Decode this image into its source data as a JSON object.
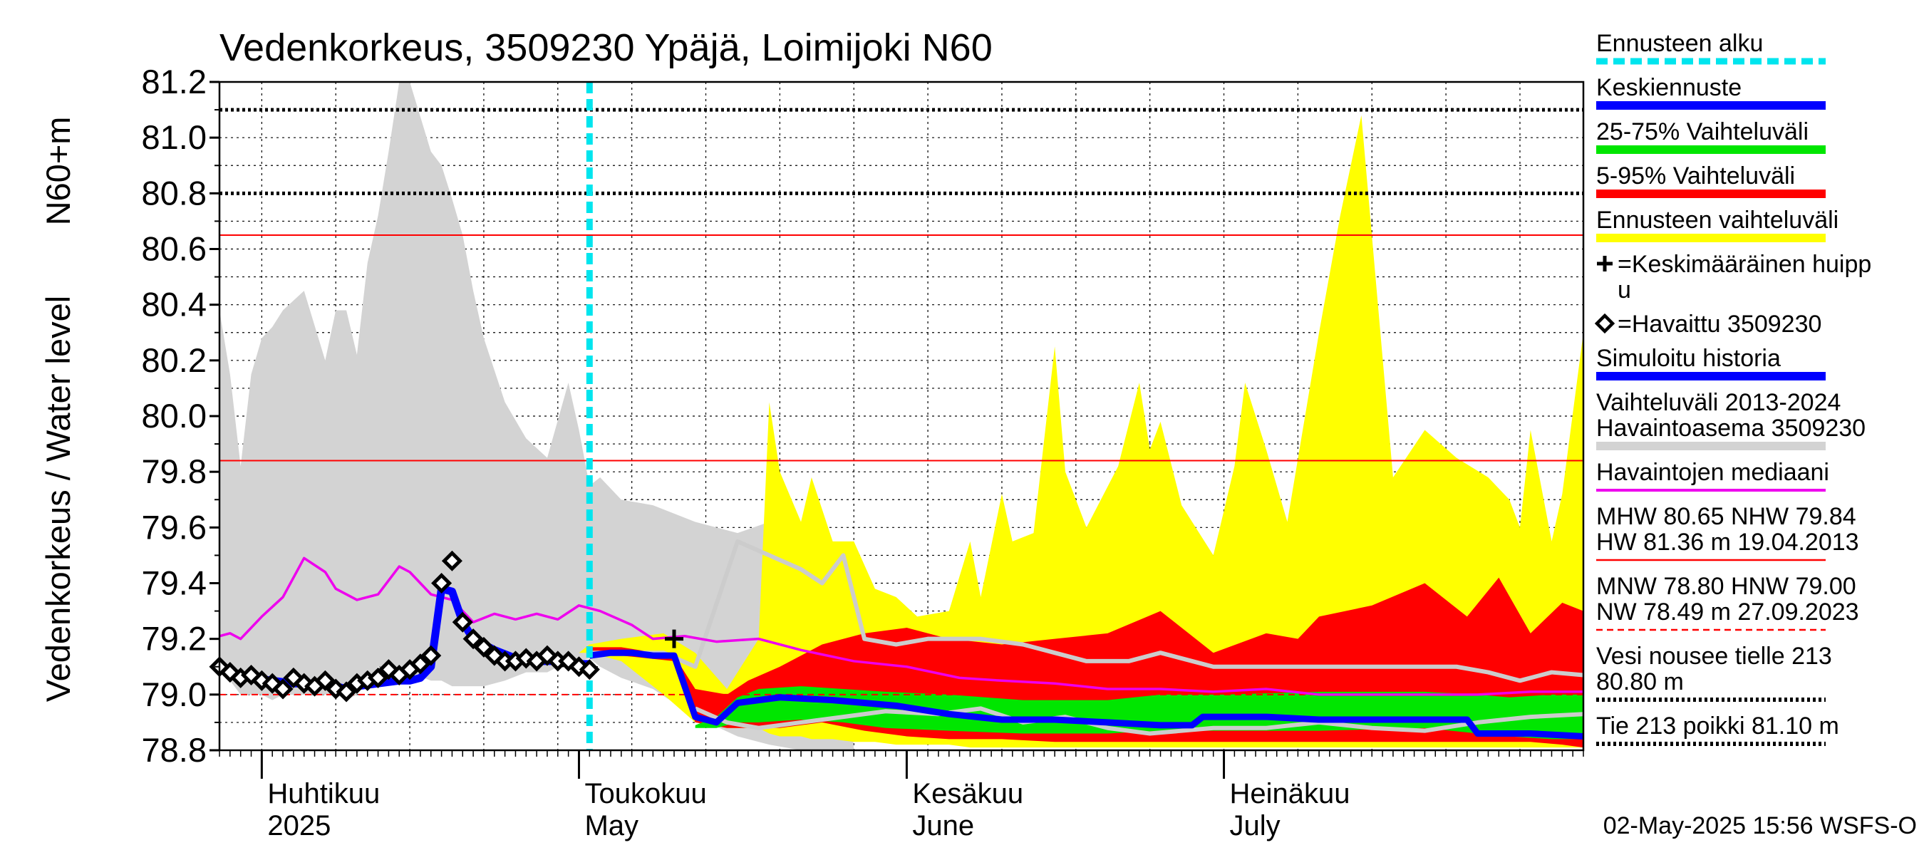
{
  "chart_data": {
    "type": "area",
    "title": "Vedenkorkeus, 3509230 Ypäjä, Loimijoki N60",
    "ylabel_left": "Vedenkorkeus / Water level",
    "ylabel_right": "N60+m",
    "ylim": [
      78.8,
      81.2
    ],
    "yticks": [
      "78.8",
      "79.0",
      "79.2",
      "79.4",
      "79.6",
      "79.8",
      "80.0",
      "80.2",
      "80.4",
      "80.6",
      "80.8",
      "81.0",
      "81.2"
    ],
    "xlim": [
      "2025-03-28",
      "2025-08-04"
    ],
    "grid": true,
    "forecast_start": "2025-05-02",
    "months": [
      {
        "date": "2025-04-01",
        "fi": "Huhtikuu",
        "en": "2025"
      },
      {
        "date": "2025-05-01",
        "fi": "Toukokuu",
        "en": "May"
      },
      {
        "date": "2025-06-01",
        "fi": "Kesäkuu",
        "en": "June"
      },
      {
        "date": "2025-07-01",
        "fi": "Heinäkuu",
        "en": "July"
      }
    ],
    "ref_lines": [
      {
        "value": 81.1,
        "style": "dotted",
        "color": "#000000"
      },
      {
        "value": 80.8,
        "style": "dotted",
        "color": "#000000"
      },
      {
        "value": 80.65,
        "style": "solid",
        "color": "#ff0000"
      },
      {
        "value": 79.84,
        "style": "solid",
        "color": "#ff0000"
      },
      {
        "value": 79.0,
        "style": "dashed",
        "color": "#ff0000"
      }
    ],
    "colors": {
      "forecast_start": "#00e5ee",
      "median_forecast": "#0000ff",
      "band_25_75": "#00e600",
      "band_5_95": "#ff0000",
      "band_forecast": "#ffff00",
      "history_range": "#d3d3d3",
      "observed_median": "#ee00ee",
      "simulated_history": "#0000ff",
      "sim_trace": "#cccccc"
    },
    "history_range": {
      "dates": [
        "2025-03-28",
        "2025-03-29",
        "2025-03-30",
        "2025-03-31",
        "2025-04-01",
        "2025-04-02",
        "2025-04-03",
        "2025-04-05",
        "2025-04-07",
        "2025-04-08",
        "2025-04-09",
        "2025-04-10",
        "2025-04-11",
        "2025-04-12",
        "2025-04-13",
        "2025-04-14",
        "2025-04-15",
        "2025-04-17",
        "2025-04-18",
        "2025-04-19",
        "2025-04-20",
        "2025-04-21",
        "2025-04-22",
        "2025-04-24",
        "2025-04-26",
        "2025-04-28",
        "2025-04-30",
        "2025-05-01",
        "2025-05-02",
        "2025-05-03",
        "2025-05-05",
        "2025-05-08",
        "2025-05-12",
        "2025-05-16",
        "2025-05-19",
        "2025-05-22",
        "2025-05-24",
        "2025-05-26",
        "2025-05-27"
      ],
      "upper": [
        80.38,
        80.15,
        79.82,
        80.15,
        80.28,
        80.32,
        80.38,
        80.45,
        80.2,
        80.38,
        80.38,
        80.22,
        80.55,
        80.72,
        80.95,
        81.2,
        81.2,
        80.95,
        80.9,
        80.78,
        80.65,
        80.45,
        80.28,
        80.05,
        79.92,
        79.85,
        80.12,
        79.95,
        79.75,
        79.78,
        79.7,
        79.68,
        79.62,
        79.58,
        79.62,
        79.58,
        79.55,
        79.45,
        78.8
      ],
      "lower": [
        79.08,
        79.05,
        79.0,
        79.0,
        79.0,
        78.98,
        79.0,
        79.0,
        79.0,
        79.0,
        78.98,
        79.0,
        79.05,
        79.1,
        79.1,
        79.08,
        79.08,
        79.05,
        79.05,
        79.03,
        79.03,
        79.03,
        79.03,
        79.05,
        79.08,
        79.08,
        79.12,
        79.12,
        79.13,
        79.1,
        79.06,
        79.02,
        78.92,
        78.85,
        78.82,
        78.8,
        78.8,
        78.8,
        78.8
      ]
    },
    "forecast_band": {
      "dates": [
        "2025-05-01",
        "2025-05-02",
        "2025-05-05",
        "2025-05-09",
        "2025-05-12",
        "2025-05-15",
        "2025-05-18",
        "2025-05-19",
        "2025-05-20",
        "2025-05-22",
        "2025-05-23",
        "2025-05-25",
        "2025-05-27",
        "2025-05-29",
        "2025-05-31",
        "2025-06-02",
        "2025-06-05",
        "2025-06-07",
        "2025-06-08",
        "2025-06-10",
        "2025-06-11",
        "2025-06-13",
        "2025-06-15",
        "2025-06-16",
        "2025-06-18",
        "2025-06-21",
        "2025-06-23",
        "2025-06-24",
        "2025-06-25",
        "2025-06-27",
        "2025-06-30",
        "2025-07-02",
        "2025-07-03",
        "2025-07-05",
        "2025-07-07",
        "2025-07-10",
        "2025-07-12",
        "2025-07-14",
        "2025-07-17",
        "2025-07-20",
        "2025-07-23",
        "2025-07-26",
        "2025-07-28",
        "2025-07-29",
        "2025-07-30",
        "2025-08-01",
        "2025-08-02",
        "2025-08-04"
      ],
      "upper": [
        79.15,
        79.18,
        79.2,
        79.22,
        79.15,
        79.02,
        79.2,
        80.05,
        79.8,
        79.62,
        79.78,
        79.55,
        79.55,
        79.38,
        79.35,
        79.28,
        79.3,
        79.55,
        79.35,
        79.72,
        79.55,
        79.58,
        80.25,
        79.8,
        79.6,
        79.82,
        80.12,
        79.88,
        79.98,
        79.68,
        79.5,
        79.82,
        80.12,
        79.88,
        79.62,
        80.3,
        80.72,
        81.08,
        79.78,
        79.95,
        79.85,
        79.78,
        79.7,
        79.6,
        79.95,
        79.55,
        79.72,
        80.3
      ],
      "lower": [
        79.15,
        79.15,
        79.12,
        79.0,
        78.9,
        78.88,
        78.88,
        78.86,
        78.85,
        78.85,
        78.84,
        78.84,
        78.83,
        78.83,
        78.82,
        78.82,
        78.82,
        78.81,
        78.81,
        78.81,
        78.81,
        78.81,
        78.81,
        78.81,
        78.81,
        78.81,
        78.81,
        78.81,
        78.81,
        78.81,
        78.81,
        78.81,
        78.81,
        78.81,
        78.81,
        78.81,
        78.81,
        78.81,
        78.81,
        78.81,
        78.81,
        78.81,
        78.81,
        78.81,
        78.81,
        78.81,
        78.81,
        78.81
      ]
    },
    "band_5_95": {
      "dates": [
        "2025-05-02",
        "2025-05-05",
        "2025-05-10",
        "2025-05-12",
        "2025-05-15",
        "2025-05-17",
        "2025-05-20",
        "2025-05-24",
        "2025-05-28",
        "2025-06-01",
        "2025-06-05",
        "2025-06-10",
        "2025-06-15",
        "2025-06-20",
        "2025-06-25",
        "2025-06-30",
        "2025-07-05",
        "2025-07-08",
        "2025-07-10",
        "2025-07-15",
        "2025-07-20",
        "2025-07-24",
        "2025-07-27",
        "2025-07-30",
        "2025-08-02",
        "2025-08-04"
      ],
      "upper": [
        79.17,
        79.17,
        79.14,
        79.02,
        79.0,
        79.05,
        79.1,
        79.18,
        79.22,
        79.24,
        79.2,
        79.18,
        79.2,
        79.22,
        79.3,
        79.15,
        79.22,
        79.2,
        79.28,
        79.32,
        79.4,
        79.28,
        79.42,
        79.22,
        79.33,
        79.3
      ],
      "lower": [
        79.14,
        79.14,
        79.12,
        78.9,
        78.88,
        78.88,
        78.88,
        78.9,
        78.87,
        78.85,
        78.84,
        78.84,
        78.83,
        78.83,
        78.83,
        78.83,
        78.83,
        78.83,
        78.83,
        78.83,
        78.83,
        78.83,
        78.83,
        78.83,
        78.82,
        78.81
      ]
    },
    "band_25_75": {
      "dates": [
        "2025-05-12",
        "2025-05-14",
        "2025-05-16",
        "2025-05-18",
        "2025-05-22",
        "2025-05-26",
        "2025-05-30",
        "2025-06-05",
        "2025-06-12",
        "2025-06-20",
        "2025-06-25",
        "2025-07-01",
        "2025-07-10",
        "2025-07-20",
        "2025-07-25",
        "2025-07-28",
        "2025-08-01",
        "2025-08-04"
      ],
      "upper": [
        78.89,
        78.92,
        78.99,
        79.02,
        79.03,
        79.02,
        79.01,
        79.0,
        78.98,
        78.98,
        79.0,
        79.0,
        79.01,
        79.01,
        79.0,
        78.99,
        79.0,
        79.0
      ],
      "lower": [
        78.88,
        78.88,
        78.9,
        78.9,
        78.91,
        78.9,
        78.88,
        78.87,
        78.86,
        78.86,
        78.87,
        78.87,
        78.87,
        78.88,
        78.86,
        78.85,
        78.84,
        78.84
      ]
    },
    "simulated_traces": [
      {
        "dates": [
          "2025-05-02",
          "2025-05-09",
          "2025-05-12",
          "2025-05-16",
          "2025-05-19",
          "2025-05-22",
          "2025-05-24",
          "2025-05-26",
          "2025-05-28",
          "2025-05-31",
          "2025-06-03",
          "2025-06-08",
          "2025-06-12",
          "2025-06-15",
          "2025-06-18",
          "2025-06-22",
          "2025-06-25",
          "2025-06-30",
          "2025-07-05",
          "2025-07-09",
          "2025-07-12",
          "2025-07-15",
          "2025-07-20",
          "2025-07-23",
          "2025-07-26",
          "2025-07-29",
          "2025-08-01",
          "2025-08-04"
        ],
        "values": [
          79.15,
          79.15,
          79.1,
          79.55,
          79.5,
          79.45,
          79.4,
          79.5,
          79.2,
          79.18,
          79.2,
          79.2,
          79.18,
          79.15,
          79.12,
          79.12,
          79.15,
          79.1,
          79.1,
          79.1,
          79.1,
          79.1,
          79.1,
          79.1,
          79.08,
          79.05,
          79.08,
          79.07
        ]
      },
      {
        "dates": [
          "2025-05-12",
          "2025-05-15",
          "2025-05-18",
          "2025-05-22",
          "2025-05-26",
          "2025-05-30",
          "2025-06-04",
          "2025-06-08",
          "2025-06-12",
          "2025-06-16",
          "2025-06-20",
          "2025-06-24",
          "2025-06-30",
          "2025-07-05",
          "2025-07-10",
          "2025-07-15",
          "2025-07-20",
          "2025-07-25",
          "2025-07-30",
          "2025-08-04"
        ],
        "values": [
          78.95,
          78.9,
          78.88,
          78.9,
          78.92,
          78.94,
          78.93,
          78.95,
          78.9,
          78.92,
          78.88,
          78.86,
          78.88,
          78.88,
          78.9,
          78.88,
          78.87,
          78.9,
          78.92,
          78.93
        ]
      }
    ],
    "observed_median": {
      "dates": [
        "2025-03-28",
        "2025-03-29",
        "2025-03-30",
        "2025-04-01",
        "2025-04-03",
        "2025-04-05",
        "2025-04-07",
        "2025-04-08",
        "2025-04-10",
        "2025-04-12",
        "2025-04-14",
        "2025-04-15",
        "2025-04-17",
        "2025-04-19",
        "2025-04-21",
        "2025-04-23",
        "2025-04-25",
        "2025-04-27",
        "2025-04-29",
        "2025-05-01",
        "2025-05-03",
        "2025-05-06",
        "2025-05-08",
        "2025-05-11",
        "2025-05-14",
        "2025-05-18",
        "2025-05-22",
        "2025-05-27",
        "2025-06-01",
        "2025-06-06",
        "2025-06-10",
        "2025-06-15",
        "2025-06-20",
        "2025-06-25",
        "2025-06-30",
        "2025-07-05",
        "2025-07-10",
        "2025-07-15",
        "2025-07-20",
        "2025-07-25",
        "2025-07-30",
        "2025-08-04"
      ],
      "values": [
        79.21,
        79.22,
        79.2,
        79.28,
        79.35,
        79.49,
        79.44,
        79.38,
        79.34,
        79.36,
        79.46,
        79.44,
        79.36,
        79.34,
        79.26,
        79.29,
        79.27,
        79.29,
        79.27,
        79.32,
        79.3,
        79.25,
        79.2,
        79.21,
        79.19,
        79.2,
        79.16,
        79.12,
        79.1,
        79.06,
        79.05,
        79.04,
        79.02,
        79.02,
        79.01,
        79.02,
        79.0,
        79.0,
        79.0,
        79.0,
        79.01,
        79.01
      ]
    },
    "simulated_history": {
      "dates": [
        "2025-03-28",
        "2025-03-29",
        "2025-03-31",
        "2025-04-02",
        "2025-04-04",
        "2025-04-06",
        "2025-04-08",
        "2025-04-09",
        "2025-04-10",
        "2025-04-12",
        "2025-04-14",
        "2025-04-15",
        "2025-04-16",
        "2025-04-17",
        "2025-04-18",
        "2025-04-19",
        "2025-04-20",
        "2025-04-21",
        "2025-04-23",
        "2025-04-25",
        "2025-04-27",
        "2025-04-29",
        "2025-05-01",
        "2025-05-02"
      ],
      "values": [
        79.1,
        79.07,
        79.06,
        79.05,
        79.04,
        79.04,
        79.03,
        79.02,
        79.03,
        79.04,
        79.05,
        79.05,
        79.06,
        79.1,
        79.38,
        79.37,
        79.26,
        79.2,
        79.16,
        79.13,
        79.12,
        79.12,
        79.11,
        79.11
      ]
    },
    "median_forecast": {
      "dates": [
        "2025-05-02",
        "2025-05-04",
        "2025-05-06",
        "2025-05-08",
        "2025-05-10",
        "2025-05-12",
        "2025-05-14",
        "2025-05-16",
        "2025-05-20",
        "2025-05-25",
        "2025-05-31",
        "2025-06-05",
        "2025-06-10",
        "2025-06-15",
        "2025-06-20",
        "2025-06-25",
        "2025-06-28",
        "2025-06-29",
        "2025-07-05",
        "2025-07-10",
        "2025-07-15",
        "2025-07-20",
        "2025-07-24",
        "2025-07-25",
        "2025-07-30",
        "2025-08-04"
      ],
      "values": [
        79.14,
        79.15,
        79.15,
        79.14,
        79.14,
        78.92,
        78.9,
        78.97,
        78.99,
        78.98,
        78.96,
        78.93,
        78.91,
        78.91,
        78.9,
        78.89,
        78.89,
        78.92,
        78.92,
        78.91,
        78.91,
        78.91,
        78.91,
        78.86,
        78.86,
        78.85
      ]
    },
    "observed": {
      "dates": [
        "2025-03-28",
        "2025-03-29",
        "2025-03-30",
        "2025-03-31",
        "2025-04-01",
        "2025-04-02",
        "2025-04-03",
        "2025-04-04",
        "2025-04-05",
        "2025-04-06",
        "2025-04-07",
        "2025-04-08",
        "2025-04-09",
        "2025-04-10",
        "2025-04-11",
        "2025-04-12",
        "2025-04-13",
        "2025-04-14",
        "2025-04-15",
        "2025-04-16",
        "2025-04-17",
        "2025-04-18",
        "2025-04-19",
        "2025-04-20",
        "2025-04-21",
        "2025-04-22",
        "2025-04-23",
        "2025-04-24",
        "2025-04-25",
        "2025-04-26",
        "2025-04-27",
        "2025-04-28",
        "2025-04-29",
        "2025-04-30",
        "2025-05-01",
        "2025-05-02"
      ],
      "values": [
        79.1,
        79.08,
        79.06,
        79.07,
        79.05,
        79.04,
        79.02,
        79.06,
        79.04,
        79.03,
        79.05,
        79.02,
        79.01,
        79.04,
        79.05,
        79.06,
        79.09,
        79.07,
        79.09,
        79.11,
        79.14,
        79.4,
        79.48,
        79.26,
        79.2,
        79.17,
        79.14,
        79.12,
        79.12,
        79.13,
        79.12,
        79.14,
        79.12,
        79.12,
        79.1,
        79.09
      ]
    },
    "average_peak": {
      "date": "2025-05-10",
      "value": 79.2
    },
    "legend": [
      {
        "label": "Ennusteen alku",
        "symbol": "dashed",
        "color": "#00e5ee"
      },
      {
        "label": "Keskiennuste",
        "symbol": "line",
        "color": "#0000ff"
      },
      {
        "label": "25-75% Vaihteluväli",
        "symbol": "line",
        "color": "#00e600"
      },
      {
        "label": "5-95% Vaihteluväli",
        "symbol": "line",
        "color": "#ff0000"
      },
      {
        "label": "Ennusteen vaihteluväli",
        "symbol": "line",
        "color": "#ffff00"
      },
      {
        "label": "=Keskimääräinen huipp",
        "label2": "u",
        "symbol": "plus",
        "color": "#000000"
      },
      {
        "label": "=Havaittu 3509230",
        "symbol": "diamond",
        "color": "#000000"
      },
      {
        "label": "Simuloitu historia",
        "symbol": "line",
        "color": "#0000ff"
      },
      {
        "label": "Vaihteluväli 2013-2024",
        "label2": " Havaintoasema 3509230",
        "symbol": "line",
        "color": "#d3d3d3"
      },
      {
        "label": "Havaintojen mediaani",
        "symbol": "thin",
        "color": "#ee00ee"
      },
      {
        "label": "MHW  80.65 NHW  79.84",
        "label2": "HW  81.36 m 19.04.2013",
        "symbol": "thinred",
        "color": "#ff0000"
      },
      {
        "label": "MNW  78.80 HNW  79.00",
        "label2": "NW  78.49 m 27.09.2023",
        "symbol": "dashedred",
        "color": "#ff0000"
      },
      {
        "label": "Vesi nousee tielle 213",
        "label2": "80.80 m",
        "symbol": "dotted",
        "color": "#000000"
      },
      {
        "label": "Tie 213 poikki 81.10 m",
        "symbol": "dotted",
        "color": "#000000"
      }
    ],
    "footer": "02-May-2025 15:56 WSFS-O"
  }
}
